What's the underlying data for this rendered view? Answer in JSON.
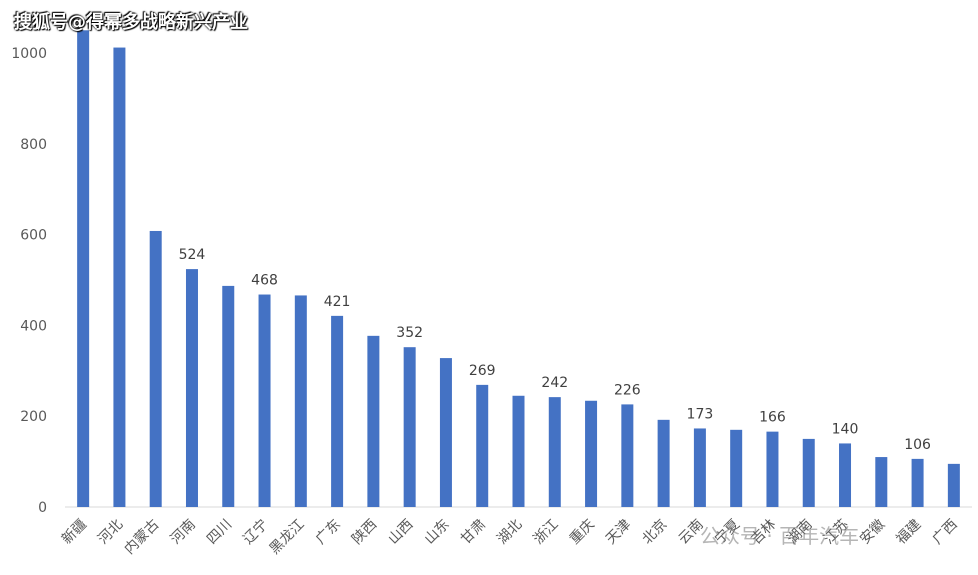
{
  "watermark_top": "搜狐号@得幂多战略新兴产业",
  "watermark_bottom": "公众号 · 百年汽车",
  "chart_data": {
    "type": "bar",
    "categories": [
      "新疆",
      "河北",
      "内蒙古",
      "河南",
      "四川",
      "辽宁",
      "黑龙江",
      "广东",
      "陕西",
      "山西",
      "山东",
      "甘肃",
      "湖北",
      "浙江",
      "重庆",
      "天津",
      "北京",
      "云南",
      "宁夏",
      "吉林",
      "湖南",
      "江苏",
      "安徽",
      "福建",
      "广西"
    ],
    "values": [
      1050,
      1012,
      608,
      524,
      487,
      468,
      466,
      421,
      377,
      352,
      328,
      269,
      245,
      242,
      234,
      226,
      192,
      173,
      170,
      166,
      150,
      140,
      110,
      106,
      95
    ],
    "data_labels": [
      null,
      null,
      null,
      "524",
      null,
      "468",
      null,
      "421",
      null,
      "352",
      null,
      "269",
      null,
      "242",
      null,
      "226",
      null,
      "173",
      null,
      "166",
      null,
      "140",
      null,
      "106",
      null
    ],
    "yticks": [
      "0",
      "200",
      "400",
      "600",
      "800",
      "1000"
    ],
    "ylim": [
      0,
      1050
    ],
    "bar_color": "#4472C4",
    "grid": false
  }
}
